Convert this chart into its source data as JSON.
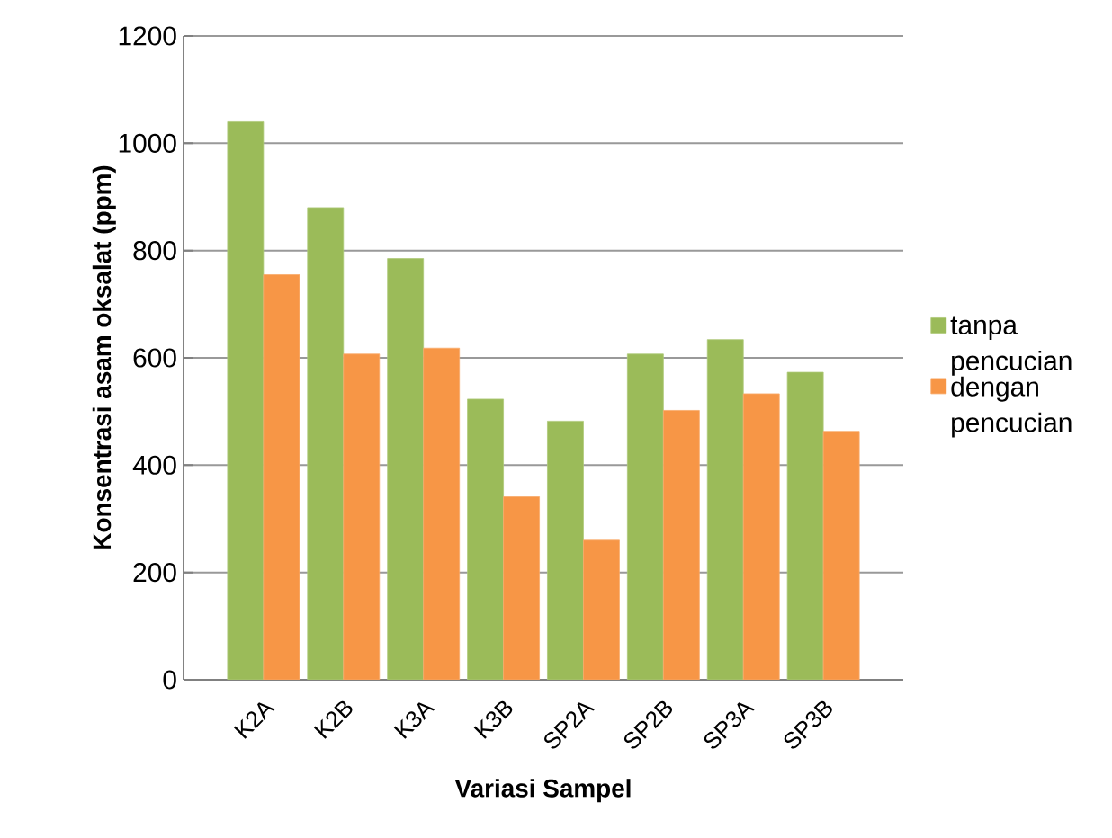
{
  "chart_data": {
    "type": "bar",
    "xlabel": "Variasi Sampel",
    "ylabel": "Konsentrasi asam oksalat (ppm)",
    "categories": [
      "K2A",
      "K2B",
      "K3A",
      "K3B",
      "SP2A",
      "SP2B",
      "SP3A",
      "SP3B"
    ],
    "series": [
      {
        "name": "tanpa pencucian",
        "color": "#9bbb59",
        "values": [
          1040,
          880,
          785,
          523,
          482,
          607,
          634,
          573
        ]
      },
      {
        "name": "dengan pencucian",
        "color": "#f79646",
        "values": [
          755,
          607,
          618,
          341,
          260,
          502,
          533,
          463
        ]
      }
    ],
    "ylim": [
      0,
      1200
    ],
    "yticks": [
      0,
      200,
      400,
      600,
      800,
      1000,
      1200
    ],
    "grid": "y",
    "legend": "right"
  }
}
